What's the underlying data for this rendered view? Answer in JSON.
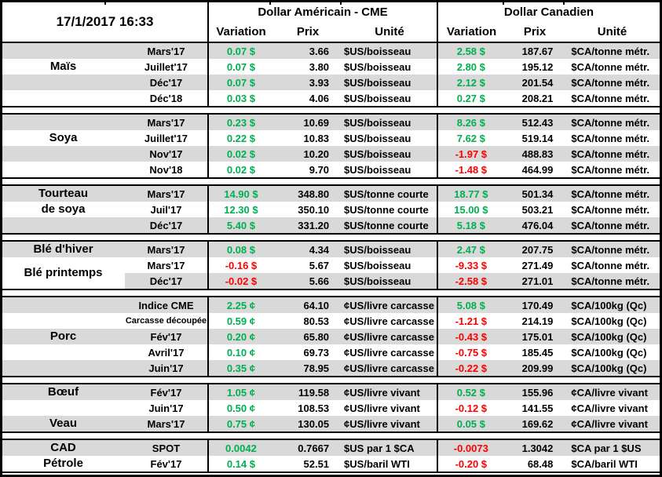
{
  "timestamp": "17/1/2017 16:33",
  "columns": {
    "us_title": "Dollar Américain - CME",
    "ca_title": "Dollar Canadien",
    "variation": "Variation",
    "prix": "Prix",
    "unite": "Unité"
  },
  "colors": {
    "positive": "#00B050",
    "negative": "#FF0000",
    "stripe": "#D9D9D9",
    "border": "#000000"
  },
  "sections": [
    {
      "name": "mais",
      "labels": [
        {
          "lines": [
            "Maïs"
          ],
          "row_start": 2,
          "row_end": 2
        }
      ],
      "rows": [
        {
          "month": "Mars'17",
          "us_var": "0.07 $",
          "us_prix": "3.66",
          "us_unit": "$US/boisseau",
          "ca_var": "2.58 $",
          "ca_prix": "187.67",
          "ca_unit": "$CA/tonne métr."
        },
        {
          "month": "Juillet'17",
          "us_var": "0.07 $",
          "us_prix": "3.80",
          "us_unit": "$US/boisseau",
          "ca_var": "2.80 $",
          "ca_prix": "195.12",
          "ca_unit": "$CA/tonne métr."
        },
        {
          "month": "Déc'17",
          "us_var": "0.07 $",
          "us_prix": "3.93",
          "us_unit": "$US/boisseau",
          "ca_var": "2.12 $",
          "ca_prix": "201.54",
          "ca_unit": "$CA/tonne métr."
        },
        {
          "month": "Déc'18",
          "us_var": "0.03 $",
          "us_prix": "4.06",
          "us_unit": "$US/boisseau",
          "ca_var": "0.27 $",
          "ca_prix": "208.21",
          "ca_unit": "$CA/tonne métr."
        }
      ]
    },
    {
      "name": "soya",
      "labels": [
        {
          "lines": [
            "Soya"
          ],
          "row_start": 2,
          "row_end": 2
        }
      ],
      "rows": [
        {
          "month": "Mars'17",
          "us_var": "0.23 $",
          "us_prix": "10.69",
          "us_unit": "$US/boisseau",
          "ca_var": "8.26 $",
          "ca_prix": "512.43",
          "ca_unit": "$CA/tonne métr."
        },
        {
          "month": "Juillet'17",
          "us_var": "0.22 $",
          "us_prix": "10.83",
          "us_unit": "$US/boisseau",
          "ca_var": "7.62 $",
          "ca_prix": "519.14",
          "ca_unit": "$CA/tonne métr."
        },
        {
          "month": "Nov'17",
          "us_var": "0.02 $",
          "us_prix": "10.20",
          "us_unit": "$US/boisseau",
          "ca_var": "-1.97 $",
          "ca_prix": "488.83",
          "ca_unit": "$CA/tonne métr."
        },
        {
          "month": "Nov'18",
          "us_var": "0.02 $",
          "us_prix": "9.70",
          "us_unit": "$US/boisseau",
          "ca_var": "-1.48 $",
          "ca_prix": "464.99",
          "ca_unit": "$CA/tonne métr."
        }
      ]
    },
    {
      "name": "tourteau-de-soya",
      "labels": [
        {
          "lines": [
            "Tourteau",
            "de soya"
          ],
          "row_start": 1,
          "row_end": 2
        }
      ],
      "rows": [
        {
          "month": "Mars'17",
          "us_var": "14.90 $",
          "us_prix": "348.80",
          "us_unit": "$US/tonne courte",
          "ca_var": "18.77 $",
          "ca_prix": "501.34",
          "ca_unit": "$CA/tonne métr."
        },
        {
          "month": "Juil'17",
          "us_var": "12.30 $",
          "us_prix": "350.10",
          "us_unit": "$US/tonne courte",
          "ca_var": "15.00 $",
          "ca_prix": "503.21",
          "ca_unit": "$CA/tonne métr."
        },
        {
          "month": "Déc'17",
          "us_var": "5.40 $",
          "us_prix": "331.20",
          "us_unit": "$US/tonne courte",
          "ca_var": "5.18 $",
          "ca_prix": "476.04",
          "ca_unit": "$CA/tonne métr."
        }
      ]
    },
    {
      "name": "ble",
      "labels": [
        {
          "lines": [
            "Blé d'hiver"
          ],
          "row_start": 1,
          "row_end": 1
        },
        {
          "lines": [
            "Blé printemps"
          ],
          "row_start": 2,
          "row_end": 3
        }
      ],
      "rows": [
        {
          "month": "Mars'17",
          "us_var": "0.08 $",
          "us_prix": "4.34",
          "us_unit": "$US/boisseau",
          "ca_var": "2.47 $",
          "ca_prix": "207.75",
          "ca_unit": "$CA/tonne métr."
        },
        {
          "month": "Mars'17",
          "us_var": "-0.16 $",
          "us_prix": "5.67",
          "us_unit": "$US/boisseau",
          "ca_var": "-9.33 $",
          "ca_prix": "271.49",
          "ca_unit": "$CA/tonne métr."
        },
        {
          "month": "Déc'17",
          "us_var": "-0.02 $",
          "us_prix": "5.66",
          "us_unit": "$US/boisseau",
          "ca_var": "-2.58 $",
          "ca_prix": "271.01",
          "ca_unit": "$CA/tonne métr.",
          "commodity_white": true
        }
      ]
    },
    {
      "name": "porc",
      "labels": [
        {
          "lines": [
            "Porc"
          ],
          "row_start": 3,
          "row_end": 3
        }
      ],
      "rows": [
        {
          "month": "Indice CME",
          "us_var": "2.25 ¢",
          "us_prix": "64.10",
          "us_unit": "¢US/livre carcasse",
          "ca_var": "5.08 $",
          "ca_prix": "170.49",
          "ca_unit": "$CA/100kg (Qc)"
        },
        {
          "month": "Carcasse découpée",
          "us_var": "0.59 ¢",
          "us_prix": "80.53",
          "us_unit": "¢US/livre carcasse",
          "ca_var": "-1.21 $",
          "ca_prix": "214.19",
          "ca_unit": "$CA/100kg (Qc)",
          "small_month": true
        },
        {
          "month": "Fév'17",
          "us_var": "0.20 ¢",
          "us_prix": "65.80",
          "us_unit": "¢US/livre carcasse",
          "ca_var": "-0.43 $",
          "ca_prix": "175.01",
          "ca_unit": "$CA/100kg (Qc)"
        },
        {
          "month": "Avril'17",
          "us_var": "0.10 ¢",
          "us_prix": "69.73",
          "us_unit": "¢US/livre carcasse",
          "ca_var": "-0.75 $",
          "ca_prix": "185.45",
          "ca_unit": "$CA/100kg (Qc)"
        },
        {
          "month": "Juin'17",
          "us_var": "0.35 ¢",
          "us_prix": "78.95",
          "us_unit": "¢US/livre carcasse",
          "ca_var": "-0.22 $",
          "ca_prix": "209.99",
          "ca_unit": "$CA/100kg (Qc)"
        }
      ]
    },
    {
      "name": "boeuf-veau",
      "labels": [
        {
          "lines": [
            "Bœuf"
          ],
          "row_start": 1,
          "row_end": 1
        },
        {
          "lines": [
            "Veau"
          ],
          "row_start": 3,
          "row_end": 3
        }
      ],
      "rows": [
        {
          "month": "Fév'17",
          "us_var": "1.05 ¢",
          "us_prix": "119.58",
          "us_unit": "¢US/livre vivant",
          "ca_var": "0.52 $",
          "ca_prix": "155.96",
          "ca_unit": "¢CA/livre vivant"
        },
        {
          "month": "Juin'17",
          "us_var": "0.50 ¢",
          "us_prix": "108.53",
          "us_unit": "¢US/livre vivant",
          "ca_var": "-0.12 $",
          "ca_prix": "141.55",
          "ca_unit": "¢CA/livre vivant"
        },
        {
          "month": "Mars'17",
          "us_var": "0.75 ¢",
          "us_prix": "130.05",
          "us_unit": "¢US/livre vivant",
          "ca_var": "0.05 $",
          "ca_prix": "169.62",
          "ca_unit": "¢CA/livre vivant"
        }
      ]
    },
    {
      "name": "cad-petrole",
      "labels": [
        {
          "lines": [
            "CAD"
          ],
          "row_start": 1,
          "row_end": 1
        },
        {
          "lines": [
            "Pétrole"
          ],
          "row_start": 2,
          "row_end": 2
        }
      ],
      "rows": [
        {
          "month": "SPOT",
          "us_var": "0.0042",
          "us_prix": "0.7667",
          "us_unit": "$US par 1 $CA",
          "ca_var": "-0.0073",
          "ca_prix": "1.3042",
          "ca_unit": "$CA par 1 $US"
        },
        {
          "month": "Fév'17",
          "us_var": "0.14 $",
          "us_prix": "52.51",
          "us_unit": "$US/baril WTI",
          "ca_var": "-0.20 $",
          "ca_prix": "68.48",
          "ca_unit": "$CA/baril WTI"
        }
      ]
    }
  ]
}
